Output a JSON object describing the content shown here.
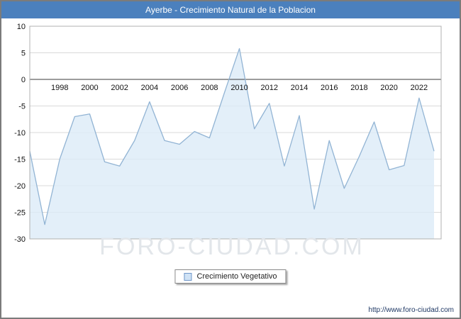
{
  "title_bar": {
    "title": "Ayerbe - Crecimiento Natural de la Poblacion",
    "bg": "#4b80bd"
  },
  "legend": {
    "label": "Crecimiento Vegetativo"
  },
  "watermark": "FORO-CIUDAD.COM",
  "footer": {
    "url": "http://www.foro-ciudad.com"
  },
  "chart_data": {
    "type": "area",
    "title": "Ayerbe - Crecimiento Natural de la Poblacion",
    "x": [
      1996,
      1997,
      1998,
      1999,
      2000,
      2001,
      2002,
      2003,
      2004,
      2005,
      2006,
      2007,
      2008,
      2009,
      2010,
      2011,
      2012,
      2013,
      2014,
      2015,
      2016,
      2017,
      2018,
      2019,
      2020,
      2021,
      2022,
      2023
    ],
    "series": [
      {
        "name": "Crecimiento Vegetativo",
        "values": [
          -13.5,
          -27.3,
          -15.0,
          -7.0,
          -6.5,
          -15.5,
          -16.3,
          -11.5,
          -4.2,
          -11.5,
          -12.2,
          -9.8,
          -11.0,
          -2.5,
          5.8,
          -9.3,
          -4.5,
          -16.3,
          -6.8,
          -24.4,
          -11.5,
          -20.5,
          -14.5,
          -8.0,
          -17.0,
          -16.2,
          -3.5,
          -13.5
        ]
      }
    ],
    "ylim": [
      -30,
      10
    ],
    "ytick_step": 5,
    "xticks": [
      1998,
      2000,
      2002,
      2004,
      2006,
      2008,
      2010,
      2012,
      2014,
      2016,
      2018,
      2020,
      2022
    ],
    "grid": "horizontal",
    "legend_position": "bottom-center",
    "colors": {
      "line": "#92b4d4",
      "fill": "#dcebf8",
      "zero_line": "#3a3a3a",
      "grid": "#d9d9d9",
      "border": "#b0b0b0",
      "tick_text": "#111111"
    }
  }
}
